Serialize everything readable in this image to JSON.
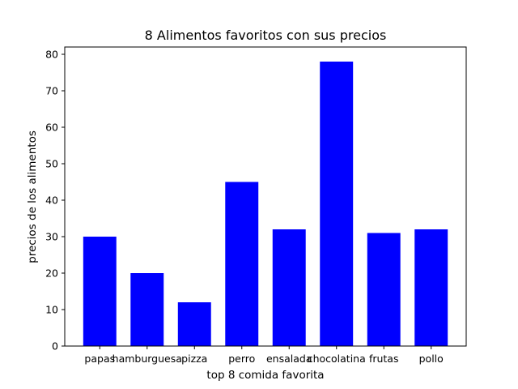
{
  "chart_data": {
    "type": "bar",
    "title": "8 Alimentos  favoritos con sus precios",
    "xlabel": "top 8 comida favorita",
    "ylabel": "precios de los alimentos",
    "categories": [
      "papas",
      "hamburguesa",
      "pizza",
      "perro",
      "ensalada",
      "chocolatina",
      "frutas",
      "pollo"
    ],
    "values": [
      30,
      20,
      12,
      45,
      32,
      78,
      31,
      32
    ],
    "ylim": [
      0,
      82
    ],
    "yticks": [
      0,
      10,
      20,
      30,
      40,
      50,
      60,
      70,
      80
    ],
    "bar_color": "#0000ff",
    "grid": false,
    "legend": "none"
  }
}
